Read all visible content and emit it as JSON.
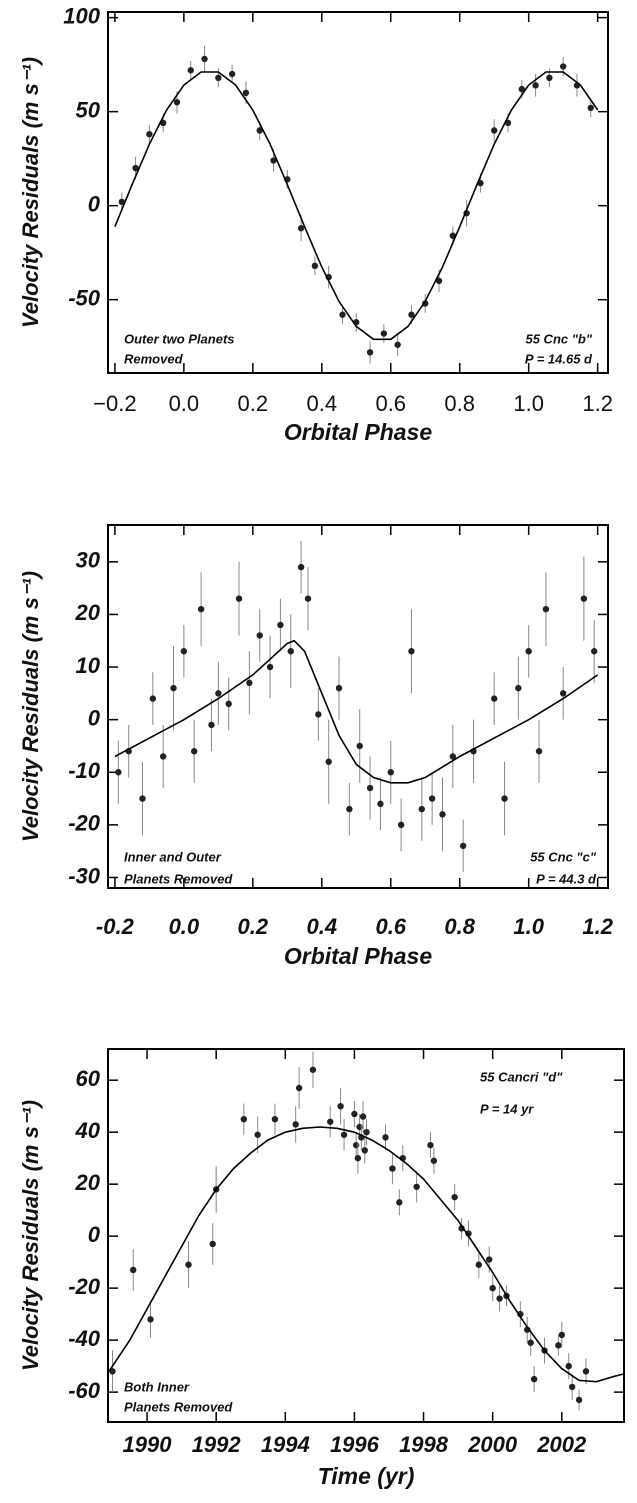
{
  "chart_data": [
    {
      "type": "scatter",
      "xlabel": "Orbital Phase",
      "ylabel": "Velocity Residuals  (m s⁻¹)",
      "note_left": [
        "Outer two Planets",
        "Removed"
      ],
      "note_right": [
        "55 Cnc \"b\"",
        "P = 14.65 d"
      ],
      "xlim": [
        -0.22,
        1.23
      ],
      "ylim": [
        -89,
        103
      ],
      "xticks": [
        {
          "value": -0.2,
          "label": "−0.2"
        },
        {
          "value": 0,
          "label": "0.0"
        },
        0.2,
        0.4,
        0.6,
        0.8,
        {
          "value": 1,
          "label": "1.0"
        },
        1.2
      ],
      "yticks": [
        -50,
        0,
        50,
        100
      ],
      "series": [
        {
          "mark": "dot",
          "color": "#222222",
          "x": [
            -0.18,
            -0.14,
            -0.1,
            -0.06,
            -0.02,
            0.02,
            0.06,
            0.1,
            0.14,
            0.18,
            0.22,
            0.26,
            0.3,
            0.34,
            0.38,
            0.42,
            0.46,
            0.5,
            0.54,
            0.58,
            0.62,
            0.66,
            0.7,
            0.74,
            0.78,
            0.82,
            0.86,
            0.9,
            0.94,
            0.98,
            1.02,
            1.06,
            1.1,
            1.14,
            1.18
          ],
          "values": [
            2,
            20,
            38,
            44,
            55,
            72,
            78,
            68,
            70,
            60,
            40,
            24,
            14,
            -12,
            -32,
            -38,
            -58,
            -62,
            -78,
            -68,
            -74,
            -58,
            -52,
            -40,
            -16,
            -4,
            12,
            40,
            44,
            62,
            64,
            68,
            74,
            64,
            52
          ],
          "errors": [
            5,
            6,
            5,
            5,
            6,
            5,
            7,
            5,
            5,
            6,
            5,
            6,
            5,
            7,
            5,
            6,
            5,
            5,
            6,
            5,
            6,
            5,
            5,
            6,
            5,
            7,
            5,
            6,
            5,
            5,
            6,
            5,
            5,
            6,
            5
          ]
        },
        {
          "mark": "line",
          "color": "#000000",
          "x": [
            -0.2,
            -0.15,
            -0.1,
            -0.05,
            0,
            0.05,
            0.1,
            0.15,
            0.2,
            0.25,
            0.3,
            0.35,
            0.4,
            0.45,
            0.5,
            0.55,
            0.6,
            0.65,
            0.7,
            0.75,
            0.8,
            0.85,
            0.9,
            0.95,
            1,
            1.05,
            1.1,
            1.15,
            1.2
          ],
          "values": [
            -11.2,
            11.2,
            32.7,
            50.9,
            64.2,
            71.1,
            71.1,
            64.2,
            50.9,
            32.7,
            11.2,
            -11.2,
            -32.7,
            -50.9,
            -64.2,
            -71.1,
            -71.1,
            -64.2,
            -50.9,
            -32.7,
            -11.2,
            11.2,
            32.7,
            50.9,
            64.2,
            71.1,
            71.1,
            64.2,
            50.9
          ]
        }
      ]
    },
    {
      "type": "scatter",
      "xlabel": "Orbital Phase",
      "ylabel": "Velocity Residuals  (m s⁻¹)",
      "note_left": [
        "Inner and Outer",
        "Planets Removed"
      ],
      "note_right": [
        "55 Cnc \"c\"",
        "P = 44.3 d"
      ],
      "xlim": [
        -0.22,
        1.23
      ],
      "ylim": [
        -32,
        37
      ],
      "xticks": [
        -0.2,
        {
          "value": 0,
          "label": "0.0"
        },
        0.2,
        0.4,
        0.6,
        0.8,
        {
          "value": 1,
          "label": "1.0"
        },
        1.2
      ],
      "yticks": [
        -30,
        -20,
        -10,
        0,
        10,
        20,
        30
      ],
      "series": [
        {
          "mark": "dot",
          "color": "#222222",
          "x": [
            -0.19,
            -0.16,
            -0.12,
            -0.09,
            -0.06,
            -0.03,
            0,
            0.03,
            0.05,
            0.08,
            0.1,
            0.13,
            0.16,
            0.19,
            0.22,
            0.25,
            0.28,
            0.31,
            0.34,
            0.36,
            0.39,
            0.42,
            0.45,
            0.48,
            0.51,
            0.54,
            0.57,
            0.6,
            0.63,
            0.66,
            0.69,
            0.72,
            0.75,
            0.78,
            0.81,
            0.84,
            0.9,
            0.93,
            0.97,
            1,
            1.03,
            1.05,
            1.1,
            1.16,
            1.19
          ],
          "values": [
            -10,
            -6,
            -15,
            4,
            -7,
            6,
            13,
            -6,
            21,
            -1,
            5,
            3,
            23,
            7,
            16,
            10,
            18,
            13,
            29,
            23,
            1,
            -8,
            6,
            -17,
            -5,
            -13,
            -16,
            -10,
            -20,
            13,
            -17,
            -15,
            -18,
            -7,
            -24,
            -6,
            4,
            -15,
            6,
            13,
            -6,
            21,
            5,
            23,
            13
          ],
          "errors": [
            6,
            5,
            7,
            5,
            6,
            8,
            5,
            6,
            7,
            5,
            6,
            5,
            7,
            6,
            5,
            6,
            5,
            7,
            5,
            6,
            5,
            8,
            6,
            5,
            7,
            6,
            5,
            6,
            5,
            8,
            6,
            5,
            7,
            6,
            5,
            6,
            5,
            7,
            6,
            5,
            6,
            7,
            5,
            8,
            6
          ]
        },
        {
          "mark": "line",
          "color": "#000000",
          "x": [
            -0.2,
            -0.1,
            0,
            0.1,
            0.2,
            0.25,
            0.3,
            0.32,
            0.35,
            0.4,
            0.45,
            0.5,
            0.55,
            0.6,
            0.65,
            0.7,
            0.8,
            0.9,
            1,
            1.1,
            1.2
          ],
          "values": [
            -7,
            -3.5,
            0,
            4,
            8.5,
            11.5,
            14.5,
            15,
            13,
            5,
            -3,
            -8.5,
            -11,
            -12,
            -12,
            -11,
            -7,
            -3.5,
            0,
            4,
            8.5
          ]
        }
      ]
    },
    {
      "type": "scatter",
      "xlabel": "Time  (yr)",
      "ylabel": "Velocity Residuals  (m s⁻¹)",
      "note_left": [
        "Both Inner",
        "Planets Removed"
      ],
      "note_right": [
        "55 Cancri \"d\"",
        "P = 14 yr"
      ],
      "xlim": [
        1988.87,
        2003.8
      ],
      "ylim": [
        -71.5,
        72
      ],
      "xticks": [
        1990,
        1992,
        1994,
        1996,
        1998,
        2000,
        2002
      ],
      "yticks": [
        -60,
        -40,
        -20,
        0,
        20,
        40,
        60
      ],
      "series": [
        {
          "mark": "dot",
          "color": "#222222",
          "x": [
            1989,
            1989.6,
            1990.1,
            1991.2,
            1991.9,
            1992,
            1992.8,
            1993.2,
            1993.7,
            1994.3,
            1994.4,
            1994.8,
            1995.3,
            1995.6,
            1995.7,
            1996,
            1996.05,
            1996.1,
            1996.15,
            1996.2,
            1996.25,
            1996.3,
            1996.35,
            1996.9,
            1997.1,
            1997.3,
            1997.4,
            1997.8,
            1998.2,
            1998.3,
            1998.9,
            1999.1,
            1999.3,
            1999.6,
            1999.9,
            2000,
            2000.2,
            2000.4,
            2000.8,
            2001,
            2001.1,
            2001.2,
            2001.5,
            2001.9,
            2002,
            2002.2,
            2002.3,
            2002.5,
            2002.7
          ],
          "values": [
            -52,
            -13,
            -32,
            -11,
            -3,
            18,
            45,
            39,
            45,
            43,
            57,
            64,
            44,
            50,
            39,
            47,
            35,
            30,
            42,
            38,
            46,
            33,
            40,
            38,
            26,
            13,
            30,
            19,
            35,
            29,
            15,
            3,
            1,
            -11,
            -9,
            -20,
            -24,
            -23,
            -30,
            -36,
            -41,
            -55,
            -44,
            -42,
            -38,
            -50,
            -58,
            -63,
            -52
          ],
          "errors": [
            8,
            8,
            7,
            9,
            8,
            9,
            6,
            7,
            6,
            7,
            8,
            7,
            6,
            7,
            6,
            5,
            5,
            6,
            5,
            5,
            6,
            5,
            5,
            5,
            6,
            5,
            5,
            6,
            5,
            5,
            5,
            4,
            5,
            5,
            5,
            5,
            5,
            4,
            5,
            5,
            5,
            5,
            5,
            4,
            5,
            5,
            5,
            4,
            5
          ]
        },
        {
          "mark": "line",
          "color": "#000000",
          "x": [
            1988.9,
            1989.5,
            1990,
            1990.5,
            1991,
            1991.5,
            1992,
            1992.5,
            1993,
            1993.5,
            1994,
            1994.5,
            1995,
            1995.5,
            1996,
            1996.5,
            1997,
            1997.5,
            1998,
            1998.5,
            1999,
            1999.5,
            2000,
            2000.5,
            2001,
            2001.5,
            2002,
            2002.5,
            2003,
            2003.5,
            2003.8
          ],
          "values": [
            -52,
            -40,
            -28,
            -16,
            -4,
            8,
            18,
            26,
            32,
            37,
            40,
            41.5,
            42,
            41.5,
            40,
            37,
            33,
            28,
            22,
            14,
            6,
            -4,
            -14,
            -25,
            -35,
            -44,
            -51,
            -55.5,
            -56,
            -54,
            -53
          ]
        }
      ]
    }
  ]
}
